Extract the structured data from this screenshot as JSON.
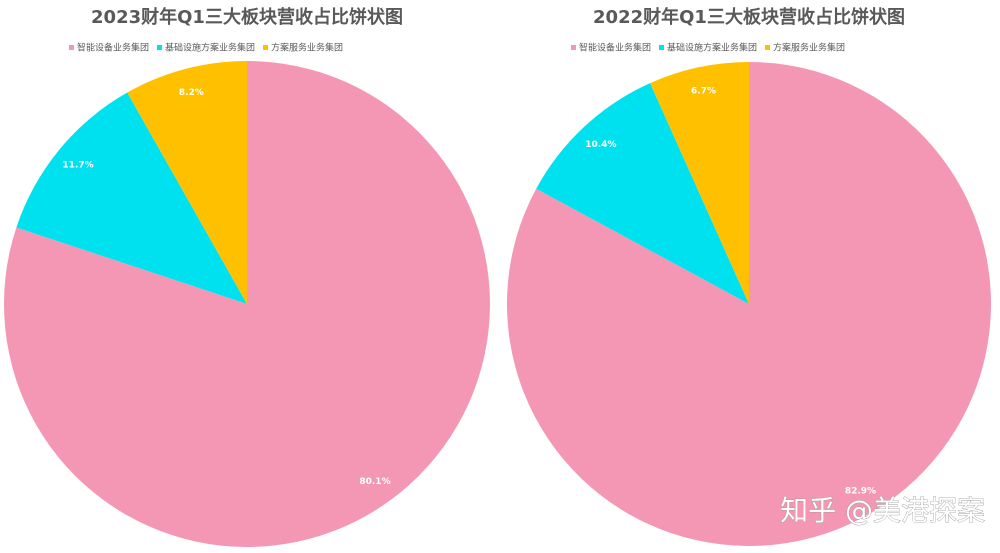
{
  "chart_data": [
    {
      "type": "pie",
      "title": "2023财年Q1三大板块营收占比饼状图",
      "categories": [
        "智能设备业务集团",
        "基础设施方案业务集团",
        "方案服务业务集团"
      ],
      "values": [
        80.1,
        11.7,
        8.2
      ],
      "value_labels": [
        "80.1%",
        "11.7%",
        "8.2%"
      ],
      "colors": [
        "#f497b5",
        "#00e1f0",
        "#ffc000"
      ]
    },
    {
      "type": "pie",
      "title": "2022财年Q1三大板块营收占比饼状图",
      "categories": [
        "智能设备业务集团",
        "基础设施方案业务集团",
        "方案服务业务集团"
      ],
      "values": [
        82.9,
        10.4,
        6.7
      ],
      "value_labels": [
        "82.9%",
        "10.4%",
        "6.7%"
      ],
      "colors": [
        "#f497b5",
        "#00e1f0",
        "#ffc000"
      ]
    }
  ],
  "watermark": "知乎 @美港探案"
}
